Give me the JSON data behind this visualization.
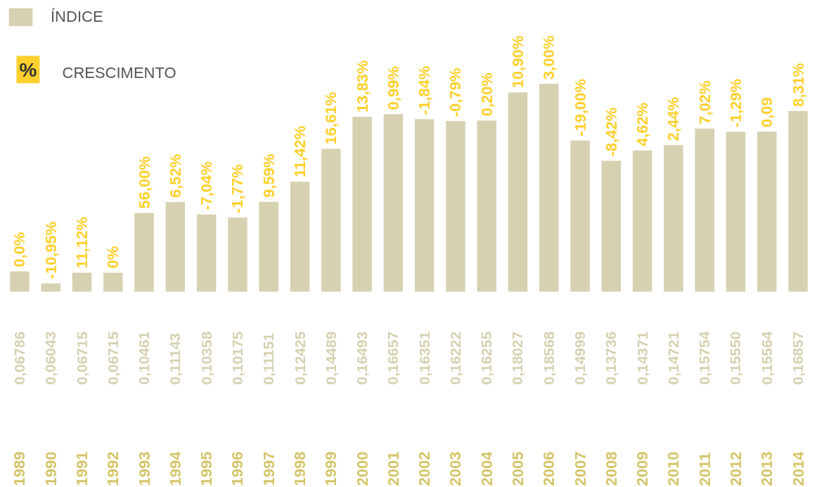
{
  "chart_data": {
    "type": "bar",
    "categories": [
      "1989",
      "1990",
      "1991",
      "1992",
      "1993",
      "1994",
      "1995",
      "1996",
      "1997",
      "1998",
      "1999",
      "2000",
      "2001",
      "2002",
      "2003",
      "2004",
      "2005",
      "2006",
      "2007",
      "2008",
      "2009",
      "2010",
      "2011",
      "2012",
      "2013",
      "2014"
    ],
    "series": [
      {
        "name": "ÍNDICE",
        "color": "#d6d1b1",
        "values": [
          0.06786,
          0.06043,
          0.06715,
          0.06715,
          0.10461,
          0.11143,
          0.10358,
          0.10175,
          0.11151,
          0.12425,
          0.14489,
          0.16493,
          0.16657,
          0.16351,
          0.16222,
          0.16255,
          0.18027,
          0.18568,
          0.14999,
          0.13736,
          0.14371,
          0.14721,
          0.15754,
          0.1555,
          0.15564,
          0.16857
        ],
        "value_labels": [
          "0,06786",
          "0,06043",
          "0,06715",
          "0,06715",
          "0,10461",
          "0,11143",
          "0,10358",
          "0,10175",
          "0,11151",
          "0,12425",
          "0,14489",
          "0,16493",
          "0,16657",
          "0,16351",
          "0,16222",
          "0,16255",
          "0,18027",
          "0,18568",
          "0,14999",
          "0,13736",
          "0,14371",
          "0,14721",
          "0,15754",
          "0,15550",
          "0,15564",
          "0,16857"
        ]
      }
    ],
    "ylim": [
      0.055,
      0.238
    ],
    "tick_labels": "x",
    "grid": false,
    "legend": "top left",
    "annotations": [
      "%",
      "CRESCIMENTO",
      {
        "text": "0,0%",
        "x": "1989",
        "y": 0.06786
      },
      {
        "text": "-10,95%",
        "x": "1990",
        "y": 0.06043
      },
      {
        "text": "11,12%",
        "x": "1991",
        "y": 0.06715
      },
      {
        "text": "0%",
        "x": "1992",
        "y": 0.06715
      },
      {
        "text": "56,00%",
        "x": "1993",
        "y": 0.10461
      },
      {
        "text": "6,52%",
        "x": "1994",
        "y": 0.11143
      },
      {
        "text": "-7,04%",
        "x": "1995",
        "y": 0.10358
      },
      {
        "text": "-1,77%",
        "x": "1996",
        "y": 0.10175
      },
      {
        "text": "9,59%",
        "x": "1997",
        "y": 0.11151
      },
      {
        "text": "11,42%",
        "x": "1998",
        "y": 0.12425
      },
      {
        "text": "16,61%",
        "x": "1999",
        "y": 0.14489
      },
      {
        "text": "13,83%",
        "x": "2000",
        "y": 0.16493
      },
      {
        "text": "0,99%",
        "x": "2001",
        "y": 0.16657
      },
      {
        "text": "-1,84%",
        "x": "2002",
        "y": 0.16351
      },
      {
        "text": "-0,79%",
        "x": "2003",
        "y": 0.16222
      },
      {
        "text": "0,20%",
        "x": "2004",
        "y": 0.16255
      },
      {
        "text": "10,90%",
        "x": "2005",
        "y": 0.18027
      },
      {
        "text": "3,00%",
        "x": "2006",
        "y": 0.18568
      },
      {
        "text": "-19,00%",
        "x": "2007",
        "y": 0.14999
      },
      {
        "text": "-8,42%",
        "x": "2008",
        "y": 0.13736
      },
      {
        "text": "4,62%",
        "x": "2009",
        "y": 0.14371
      },
      {
        "text": "2,44%",
        "x": "2010",
        "y": 0.14721
      },
      {
        "text": "7,02%",
        "x": "2011",
        "y": 0.15754
      },
      {
        "text": "-1,29%",
        "x": "2012",
        "y": 0.1555
      },
      {
        "text": "0,09",
        "x": "2013",
        "y": 0.15564
      },
      {
        "text": "8,31%",
        "x": "2014",
        "y": 0.16857
      }
    ]
  }
}
